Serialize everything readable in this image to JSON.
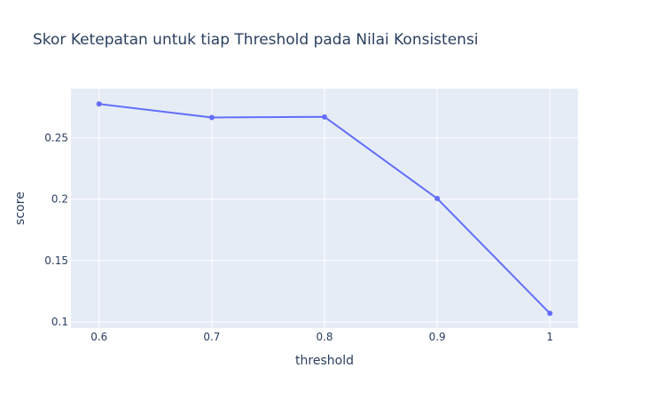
{
  "chart_data": {
    "type": "line",
    "title": "Skor Ketepatan untuk tiap Threshold pada Nilai Konsistensi",
    "xlabel": "threshold",
    "ylabel": "score",
    "x": [
      0.6,
      0.7,
      0.8,
      0.9,
      1.0
    ],
    "x_tick_values": [
      0.6,
      0.7,
      0.8,
      0.9,
      1.0
    ],
    "x_tick_labels": [
      "0.6",
      "0.7",
      "0.8",
      "0.9",
      "1"
    ],
    "y_tick_values": [
      0.1,
      0.15,
      0.2,
      0.25
    ],
    "y_tick_labels": [
      "0.1",
      "0.15",
      "0.2",
      "0.25"
    ],
    "xlim": [
      0.575,
      1.025
    ],
    "ylim": [
      0.095,
      0.29
    ],
    "grid": true,
    "series": [
      {
        "name": "score",
        "color": "#636efa",
        "values": [
          0.2775,
          0.2665,
          0.267,
          0.2005,
          0.107
        ]
      }
    ]
  }
}
